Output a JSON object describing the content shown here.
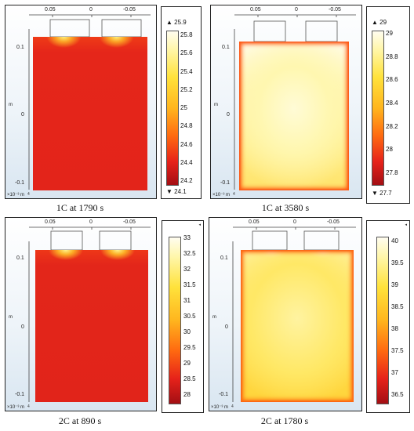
{
  "panels": [
    {
      "id": "p1",
      "top_ticks": [
        "0.05",
        "0",
        "-0.05"
      ],
      "left_ticks": [
        "0.1",
        "0",
        "-0.1"
      ],
      "axis_unit": "m",
      "scale_note": "×10⁻³ m",
      "corner_digit": "4",
      "caption": "1C at 1790 s",
      "colorbar": {
        "max_mark": "▲ 25.9",
        "min_mark": "▼ 24.1",
        "ticks": [
          "25.8",
          "25.6",
          "25.4",
          "25.2",
          "25",
          "24.8",
          "24.6",
          "24.4",
          "24.2"
        ]
      }
    },
    {
      "id": "p2",
      "top_ticks": [
        "0.05",
        "0",
        "-0.05"
      ],
      "left_ticks": [
        "0.1",
        "0",
        "-0.1"
      ],
      "axis_unit": "m",
      "scale_note": "×10⁻³ m",
      "corner_digit": "4",
      "caption": "1C at 3580 s",
      "colorbar": {
        "max_mark": "▲ 29",
        "min_mark": "▼ 27.7",
        "ticks": [
          "29",
          "28.8",
          "28.6",
          "28.4",
          "28.2",
          "28",
          "27.8"
        ]
      }
    },
    {
      "id": "p3",
      "top_ticks": [
        "0.05",
        "0",
        "-0.05"
      ],
      "left_ticks": [
        "0.1",
        "0",
        "-0.1"
      ],
      "axis_unit": "m",
      "scale_note": "×10⁻³ m",
      "corner_digit": "4",
      "caption": "2C at 890 s",
      "colorbar": {
        "ticks": [
          "33",
          "32.5",
          "32",
          "31.5",
          "31",
          "30.5",
          "30",
          "29.5",
          "29",
          "28.5",
          "28"
        ]
      }
    },
    {
      "id": "p4",
      "top_ticks": [
        "0.05",
        "0",
        "-0.05"
      ],
      "left_ticks": [
        "0.1",
        "0",
        "-0.1"
      ],
      "axis_unit": "m",
      "scale_note": "×10⁻³ m",
      "corner_digit": "4",
      "caption": "2C at 1780 s",
      "colorbar": {
        "ticks": [
          "40",
          "39.5",
          "39",
          "38.5",
          "38",
          "37.5",
          "37",
          "36.5"
        ]
      }
    }
  ],
  "colors": {
    "hot_white": "#fffbe6",
    "yellow": "#ffd400",
    "red": "#e8261a",
    "dark_red": "#a30f14"
  }
}
